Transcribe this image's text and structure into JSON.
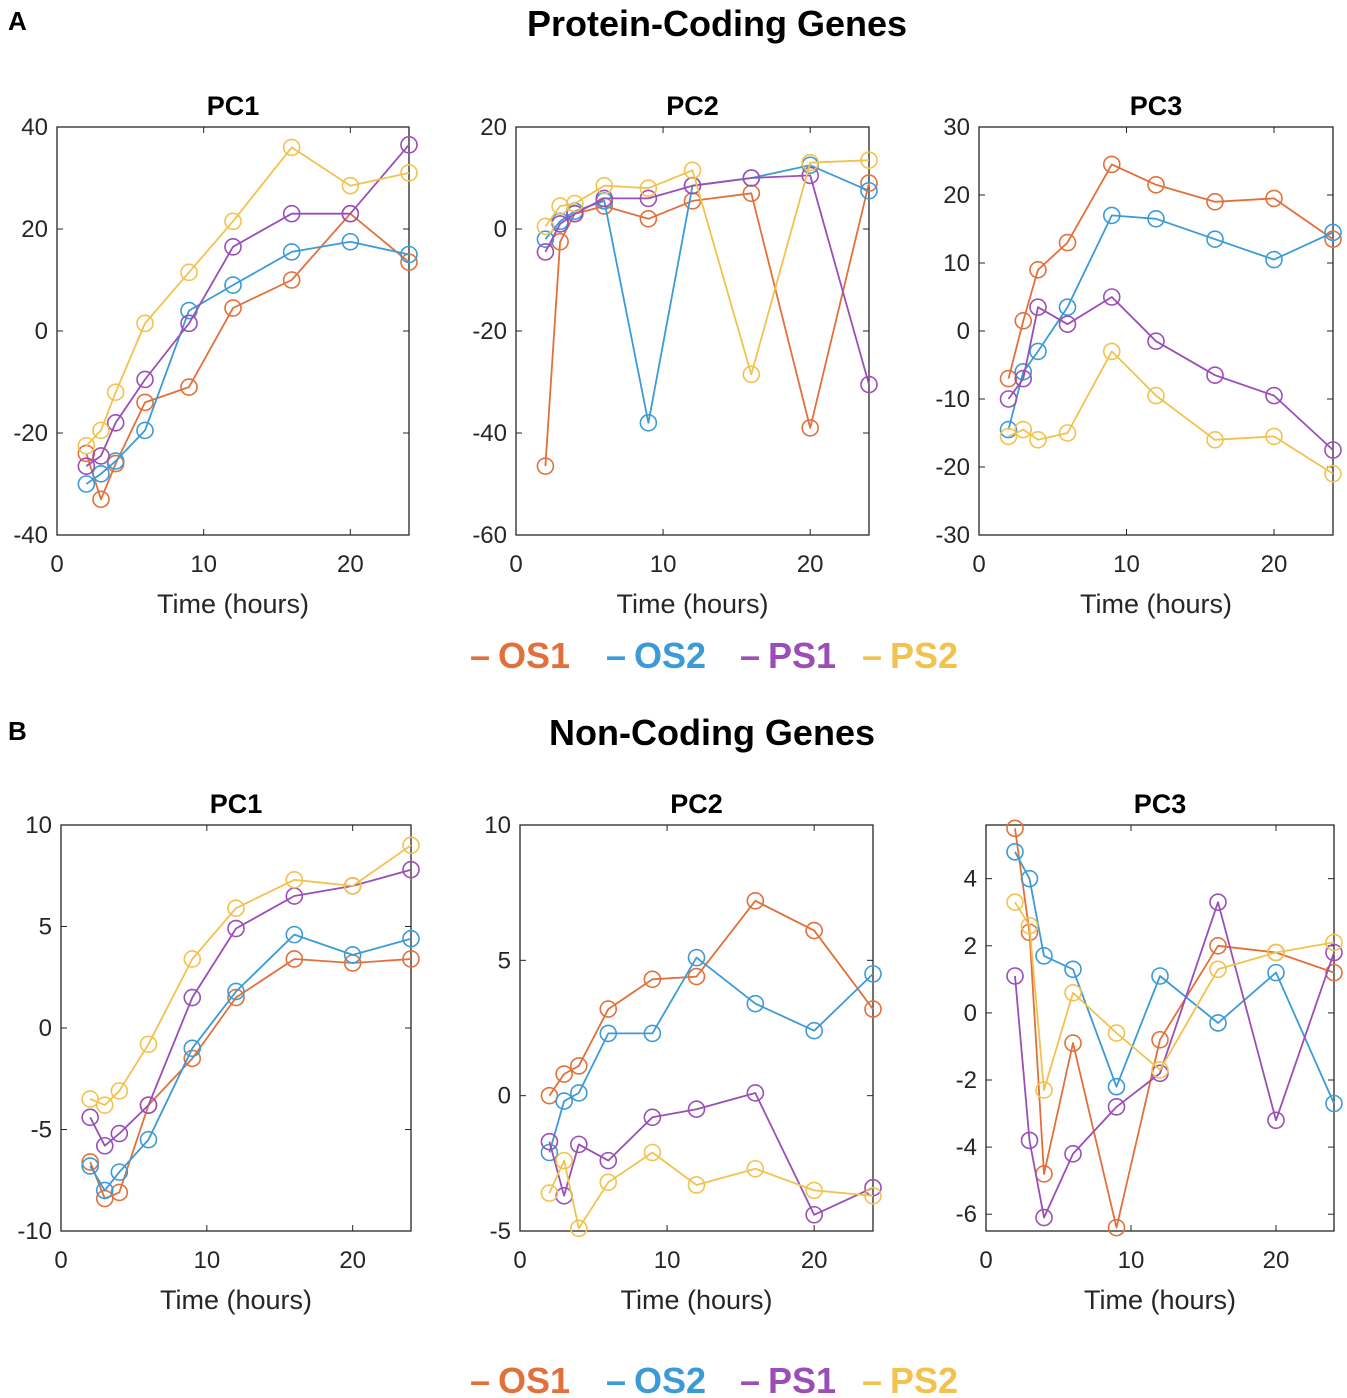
{
  "colors": {
    "OS1": "#E2703A",
    "OS2": "#3C9BD6",
    "PS1": "#9B4FB6",
    "PS2": "#F2C24E"
  },
  "sections": [
    {
      "letter": "A",
      "title": "Protein-Coding Genes"
    },
    {
      "letter": "B",
      "title": "Non-Coding Genes"
    }
  ],
  "legend": [
    {
      "name": "OS1",
      "marker": "–"
    },
    {
      "name": "OS2",
      "marker": "–"
    },
    {
      "name": "PS1",
      "marker": "–"
    },
    {
      "name": "PS2",
      "marker": "–"
    }
  ],
  "chart_data": [
    {
      "type": "line",
      "section": "A",
      "title": "PC1",
      "xlabel": "Time (hours)",
      "ylabel": "",
      "xlim": [
        0,
        24
      ],
      "ylim": [
        -40,
        40
      ],
      "xticks": [
        0,
        10,
        20
      ],
      "yticks": [
        -40,
        -20,
        0,
        20,
        40
      ],
      "x": [
        2,
        3,
        4,
        6,
        9,
        12,
        16,
        20,
        24
      ],
      "series": [
        {
          "name": "OS1",
          "values": [
            -24,
            -33,
            -26,
            -14,
            -11,
            4.5,
            10,
            23,
            13.5
          ]
        },
        {
          "name": "OS2",
          "values": [
            -30,
            -28,
            -25.5,
            -19.5,
            4,
            9,
            15.5,
            17.5,
            15
          ]
        },
        {
          "name": "PS1",
          "values": [
            -26.5,
            -24.5,
            -18,
            -9.5,
            1.5,
            16.5,
            23,
            23,
            36.5
          ]
        },
        {
          "name": "PS2",
          "values": [
            -22.5,
            -19.5,
            -12,
            1.5,
            11.5,
            21.5,
            36,
            28.5,
            31
          ]
        }
      ]
    },
    {
      "type": "line",
      "section": "A",
      "title": "PC2",
      "xlabel": "Time (hours)",
      "ylabel": "",
      "xlim": [
        0,
        24
      ],
      "ylim": [
        -60,
        20
      ],
      "xticks": [
        0,
        10,
        20
      ],
      "yticks": [
        -60,
        -40,
        -20,
        0,
        20
      ],
      "x": [
        2,
        3,
        4,
        6,
        9,
        12,
        16,
        20,
        24
      ],
      "series": [
        {
          "name": "OS1",
          "values": [
            -46.5,
            -2.5,
            3,
            4.5,
            2,
            5.5,
            7,
            -39,
            9
          ]
        },
        {
          "name": "OS2",
          "values": [
            -2,
            1.5,
            3.5,
            5.5,
            -38,
            8.5,
            10,
            12.5,
            7.5
          ]
        },
        {
          "name": "PS1",
          "values": [
            -4.5,
            1,
            3,
            6,
            6,
            8.5,
            10,
            10.5,
            -30.5
          ]
        },
        {
          "name": "PS2",
          "values": [
            0.5,
            4.5,
            5,
            8.5,
            8,
            11.5,
            -28.5,
            13,
            13.5
          ]
        }
      ]
    },
    {
      "type": "line",
      "section": "A",
      "title": "PC3",
      "xlabel": "Time (hours)",
      "ylabel": "",
      "xlim": [
        0,
        24
      ],
      "ylim": [
        -30,
        30
      ],
      "xticks": [
        0,
        10,
        20
      ],
      "yticks": [
        -30,
        -20,
        -10,
        0,
        10,
        20,
        30
      ],
      "x": [
        2,
        3,
        4,
        6,
        9,
        12,
        16,
        20,
        24
      ],
      "series": [
        {
          "name": "OS1",
          "values": [
            -7,
            1.5,
            9,
            13,
            24.5,
            21.5,
            19,
            19.5,
            13.5
          ]
        },
        {
          "name": "OS2",
          "values": [
            -14.5,
            -6,
            -3,
            3.5,
            17,
            16.5,
            13.5,
            10.5,
            14.5
          ]
        },
        {
          "name": "PS1",
          "values": [
            -10,
            -7,
            3.5,
            1,
            5,
            -1.5,
            -6.5,
            -9.5,
            -17.5
          ]
        },
        {
          "name": "PS2",
          "values": [
            -15.5,
            -14.5,
            -16,
            -15,
            -3,
            -9.5,
            -16,
            -15.5,
            -21
          ]
        }
      ]
    },
    {
      "type": "line",
      "section": "B",
      "title": "PC1",
      "xlabel": "Time (hours)",
      "ylabel": "",
      "xlim": [
        0,
        24
      ],
      "ylim": [
        -10,
        10
      ],
      "xticks": [
        0,
        10,
        20
      ],
      "yticks": [
        -10,
        -5,
        0,
        5,
        10
      ],
      "x": [
        2,
        3,
        4,
        6,
        9,
        12,
        16,
        20,
        24
      ],
      "series": [
        {
          "name": "OS1",
          "values": [
            -6.6,
            -8.4,
            -8.1,
            -3.8,
            -1.5,
            1.5,
            3.4,
            3.2,
            3.4
          ]
        },
        {
          "name": "OS2",
          "values": [
            -6.8,
            -8,
            -7.1,
            -5.5,
            -1,
            1.8,
            4.6,
            3.6,
            4.4
          ]
        },
        {
          "name": "PS1",
          "values": [
            -4.4,
            -5.8,
            -5.2,
            -3.8,
            1.5,
            4.9,
            6.5,
            7,
            7.8
          ]
        },
        {
          "name": "PS2",
          "values": [
            -3.5,
            -3.8,
            -3.1,
            -0.8,
            3.4,
            5.9,
            7.3,
            7,
            9
          ]
        }
      ]
    },
    {
      "type": "line",
      "section": "B",
      "title": "PC2",
      "xlabel": "Time (hours)",
      "ylabel": "",
      "xlim": [
        0,
        24
      ],
      "ylim": [
        -5,
        10
      ],
      "xticks": [
        0,
        10,
        20
      ],
      "yticks": [
        -5,
        0,
        5,
        10
      ],
      "x": [
        2,
        3,
        4,
        6,
        9,
        12,
        16,
        20,
        24
      ],
      "series": [
        {
          "name": "OS1",
          "values": [
            0,
            0.8,
            1.1,
            3.2,
            4.3,
            4.4,
            7.2,
            6.1,
            3.2
          ]
        },
        {
          "name": "OS2",
          "values": [
            -2.1,
            -0.2,
            0.1,
            2.3,
            2.3,
            5.1,
            3.4,
            2.4,
            4.5
          ]
        },
        {
          "name": "PS1",
          "values": [
            -1.7,
            -3.7,
            -1.8,
            -2.4,
            -0.8,
            -0.5,
            0.1,
            -4.4,
            -3.4
          ]
        },
        {
          "name": "PS2",
          "values": [
            -3.6,
            -2.4,
            -4.9,
            -3.2,
            -2.1,
            -3.3,
            -2.7,
            -3.5,
            -3.7
          ]
        }
      ]
    },
    {
      "type": "line",
      "section": "B",
      "title": "PC3",
      "xlabel": "Time (hours)",
      "ylabel": "",
      "xlim": [
        0,
        24
      ],
      "ylim": [
        -6.5,
        5.6
      ],
      "xticks": [
        0,
        10,
        20
      ],
      "yticks": [
        -6,
        -4,
        -2,
        0,
        2,
        4
      ],
      "x": [
        2,
        3,
        4,
        6,
        9,
        12,
        16,
        20,
        24
      ],
      "series": [
        {
          "name": "OS1",
          "values": [
            5.5,
            2.4,
            -4.8,
            -0.9,
            -6.4,
            -0.8,
            2,
            1.8,
            1.2
          ]
        },
        {
          "name": "OS2",
          "values": [
            4.8,
            4,
            1.7,
            1.3,
            -2.2,
            1.1,
            -0.3,
            1.2,
            -2.7
          ]
        },
        {
          "name": "PS1",
          "values": [
            1.1,
            -3.8,
            -6.1,
            -4.2,
            -2.8,
            -1.8,
            3.3,
            -3.2,
            1.8
          ]
        },
        {
          "name": "PS2",
          "values": [
            3.3,
            2.6,
            -2.3,
            0.6,
            -0.6,
            -1.7,
            1.3,
            1.8,
            2.1
          ]
        }
      ]
    }
  ]
}
